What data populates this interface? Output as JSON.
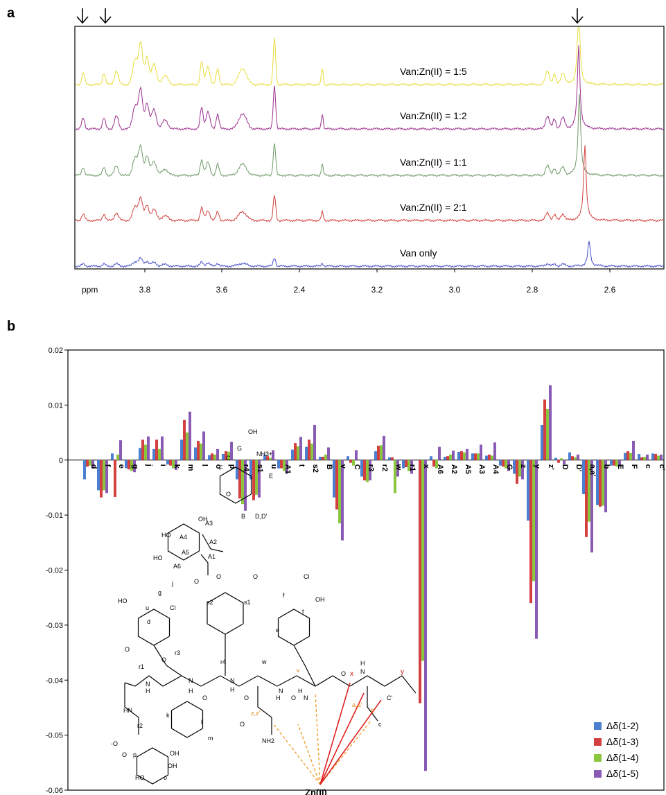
{
  "panel_a_label": "a",
  "panel_b_label": "b",
  "chart_data": [
    {
      "type": "line",
      "panel": "a",
      "x_axis": {
        "unit_label": "ppm",
        "tick_labels": [
          "3.8",
          "3.6",
          "2.4",
          "3.2",
          "3.0",
          "2.8",
          "2.6"
        ]
      },
      "series": [
        {
          "name": "Van:Zn(II) = 1:5",
          "color": "#e8dc3a",
          "peaks": [
            {
              "at": "3.82",
              "height": 0.55
            },
            {
              "at": "2.48",
              "height": 0.9
            },
            {
              "at": "2.70",
              "height": 1.0
            }
          ]
        },
        {
          "name": "Van:Zn(II) = 1:2",
          "color": "#9a2e8e",
          "peaks": [
            {
              "at": "3.82",
              "height": 0.6
            },
            {
              "at": "2.48",
              "height": 0.85
            },
            {
              "at": "2.70",
              "height": 1.0
            }
          ]
        },
        {
          "name": "Van:Zn(II) = 1:1",
          "color": "#6f9a68",
          "peaks": [
            {
              "at": "3.82",
              "height": 0.45
            },
            {
              "at": "2.48",
              "height": 0.6
            },
            {
              "at": "2.70",
              "height": 1.0
            }
          ]
        },
        {
          "name": "Van:Zn(II) = 2:1",
          "color": "#d2403c",
          "peaks": [
            {
              "at": "3.82",
              "height": 0.35
            },
            {
              "at": "2.48",
              "height": 0.45
            },
            {
              "at": "2.69",
              "height": 1.0
            }
          ]
        },
        {
          "name": "Van only",
          "color": "#4650c8",
          "peaks": [
            {
              "at": "3.82",
              "height": 0.15
            },
            {
              "at": "2.48",
              "height": 0.2
            },
            {
              "at": "2.68",
              "height": 0.45
            }
          ]
        }
      ]
    },
    {
      "type": "bar",
      "panel": "b",
      "ylim": [
        -0.06,
        0.02
      ],
      "yticks": [
        "0.02",
        "0.01",
        "0",
        "-0.01",
        "-0.02",
        "-0.03",
        "-0.04",
        "-0.05",
        "-0.06"
      ],
      "legend_position": "bottom-right",
      "categories": [
        "d",
        "f",
        "e",
        "g",
        "j",
        "i",
        "k",
        "m",
        "l",
        "o",
        "p",
        "r4",
        "s1",
        "u",
        "A1",
        "t",
        "s2",
        "B",
        "v",
        "C",
        "r3",
        "r2",
        "w",
        "r1",
        "x",
        "A6",
        "A2",
        "A5",
        "A3",
        "A4",
        "G",
        "z",
        "y",
        "z'",
        "D",
        "D'",
        "a,a'",
        "b",
        "E",
        "F",
        "c",
        "c'"
      ],
      "series": [
        {
          "name": "Δδ(1-2)",
          "color": "#4a7fd1",
          "values": [
            -0.0035,
            -0.0055,
            0.0012,
            -0.0015,
            0.0022,
            0.002,
            -0.0008,
            0.0037,
            0.0023,
            0.0009,
            0.0011,
            -0.0035,
            -0.0035,
            0.001,
            -0.0015,
            0.0019,
            0.0024,
            0.0006,
            -0.0068,
            0.0007,
            -0.003,
            0.0016,
            0.0005,
            -0.0015,
            0,
            0.0007,
            0.0006,
            0.0015,
            0.0012,
            0.0008,
            -0.001,
            -0.0025,
            -0.011,
            0.0064,
            0.0004,
            0.0014,
            -0.0062,
            -0.0082,
            -0.001,
            0.0013,
            0.0011,
            0.0012
          ]
        },
        {
          "name": "Δδ(1-3)",
          "color": "#d43f3f",
          "values": [
            -0.0012,
            -0.0068,
            -0.0067,
            -0.0017,
            0.0037,
            0.0037,
            -0.001,
            0.0073,
            0.0035,
            0.0012,
            0.0016,
            -0.007,
            -0.0073,
            0.0007,
            -0.0015,
            0.0031,
            0.0037,
            0.0006,
            -0.009,
            -0.0005,
            -0.0037,
            0.0026,
            0.0005,
            -0.0013,
            -0.0442,
            -0.0012,
            0.0007,
            0.0016,
            0.0012,
            0.001,
            -0.0012,
            -0.0043,
            -0.026,
            0.011,
            -0.0005,
            0.0007,
            -0.014,
            -0.0085,
            -0.001,
            0.0016,
            0.0005,
            0.0011
          ]
        },
        {
          "name": "Δδ(1-4)",
          "color": "#8cc63f",
          "values": [
            -0.001,
            -0.0055,
            0.001,
            -0.002,
            0.0028,
            0.002,
            -0.0015,
            0.005,
            0.003,
            0.001,
            0.0015,
            -0.008,
            -0.0063,
            0.0004,
            -0.002,
            0.0025,
            0.003,
            0.001,
            -0.0115,
            -0.001,
            -0.004,
            0.0027,
            -0.006,
            -0.002,
            -0.0365,
            -0.0015,
            0.001,
            0.0014,
            0.0012,
            0.0008,
            -0.0015,
            -0.003,
            -0.022,
            0.0093,
            0.0003,
            0.0005,
            -0.0112,
            -0.0083,
            -0.0012,
            0.0013,
            0.0006,
            0.0008
          ]
        },
        {
          "name": "Δδ(1-5)",
          "color": "#8a5bb5",
          "values": [
            -0.0015,
            -0.006,
            0.0036,
            -0.0022,
            0.0043,
            0.0043,
            -0.0018,
            0.0088,
            0.0052,
            0.002,
            0.0033,
            -0.0092,
            -0.0068,
            0.0018,
            -0.0025,
            0.0042,
            0.0064,
            0.0023,
            -0.0146,
            0.0018,
            -0.0037,
            0.0044,
            -0.003,
            -0.0025,
            -0.0565,
            0.0024,
            0.0017,
            0.002,
            0.0028,
            0.0032,
            -0.002,
            -0.0035,
            -0.0325,
            0.0136,
            -0.0008,
            0.001,
            -0.0168,
            -0.0095,
            -0.0012,
            0.0035,
            0.001,
            0.001
          ]
        }
      ]
    }
  ],
  "structure": {
    "labels_black": [
      "F",
      "C",
      "G",
      "OH",
      "NH3+",
      "E",
      "O",
      "B",
      "D,D'",
      "OH",
      "HO",
      "A4",
      "A3",
      "A2",
      "HO",
      "A5",
      "A1",
      "A6",
      "O",
      "O",
      "O",
      "Cl",
      "g",
      "j",
      "s2",
      "s1",
      "f",
      "HO",
      "u",
      "d",
      "Cl",
      "e",
      "t",
      "OH",
      "O",
      "r1",
      "N",
      "H",
      "O",
      "r3",
      "H",
      "N",
      "O",
      "r4",
      "N",
      "H",
      "O",
      "w",
      "H",
      "N",
      "O",
      "H",
      "N",
      "O",
      "HN",
      "k",
      "l",
      "m",
      "r2",
      "-O",
      "O",
      "p",
      "OH",
      "HO",
      "o",
      "OH",
      "NH2",
      "O",
      "H",
      "N",
      "C'",
      "c"
    ],
    "labels_orange": [
      "z,z'",
      "v",
      "a,a'",
      "b"
    ],
    "labels_red": [
      "x",
      "y"
    ],
    "zn_label": "Zn(II)"
  }
}
